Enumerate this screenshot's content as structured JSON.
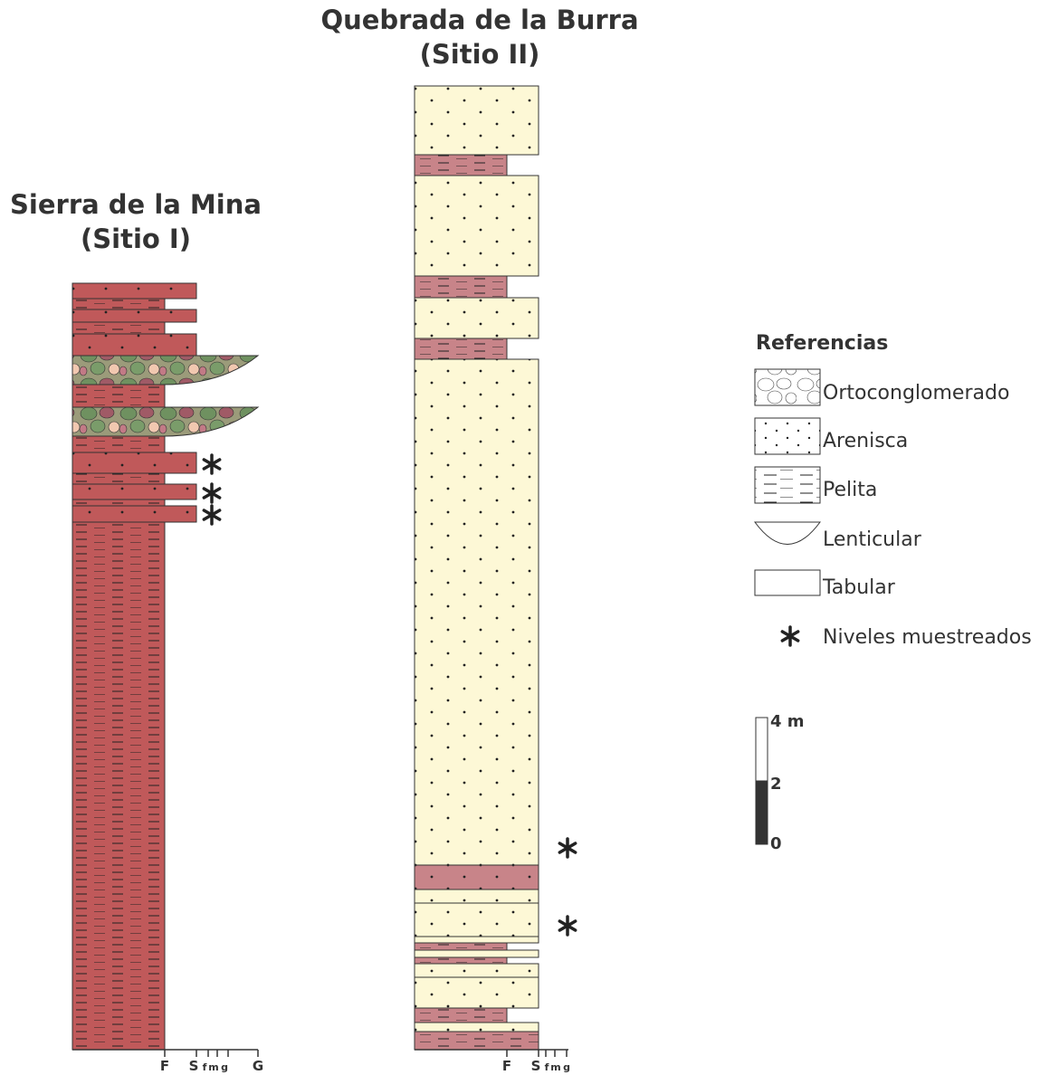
{
  "columns": [
    {
      "title": "Sierra de la Mina",
      "subtitle": "(Sitio I)",
      "axis": [
        "F",
        "S",
        "f",
        "m",
        "g",
        "G"
      ]
    },
    {
      "title": "Quebrada de la Burra",
      "subtitle": "(Sitio II)",
      "axis": [
        "F",
        "S",
        "f",
        "m",
        "g"
      ]
    }
  ],
  "legend": {
    "title": "Referencias",
    "items": [
      "Ortoconglomerado",
      "Arenisca",
      "Pelita",
      "Lenticular",
      "Tabular"
    ],
    "sampled": "Niveles muestreados"
  },
  "scale": {
    "labels": [
      "4 m",
      "2",
      "0"
    ]
  }
}
